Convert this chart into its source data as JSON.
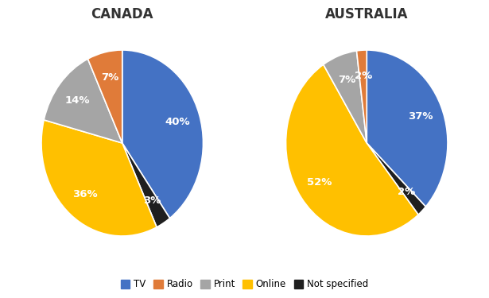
{
  "canada": {
    "title": "CANADA",
    "values": [
      40,
      3,
      36,
      14,
      7
    ],
    "colors": [
      "#4472C4",
      "#1F1F1F",
      "#FFC000",
      "#A5A5A5",
      "#E07B39"
    ],
    "pct_colors": [
      "white",
      "white",
      "white",
      "white",
      "white"
    ],
    "startangle": 90
  },
  "australia": {
    "title": "AUSTRALIA",
    "values": [
      37,
      2,
      52,
      7,
      2
    ],
    "colors": [
      "#4472C4",
      "#1F1F1F",
      "#FFC000",
      "#A5A5A5",
      "#E07B39"
    ],
    "pct_colors": [
      "white",
      "white",
      "white",
      "white",
      "white"
    ],
    "startangle": 90
  },
  "legend_labels": [
    "TV",
    "Radio",
    "Print",
    "Online",
    "Not specified"
  ],
  "legend_colors": [
    "#4472C4",
    "#E07B39",
    "#A5A5A5",
    "#FFC000",
    "#1F1F1F"
  ],
  "background_color": "#FFFFFF",
  "title_fontsize": 12,
  "label_fontsize": 9.5
}
